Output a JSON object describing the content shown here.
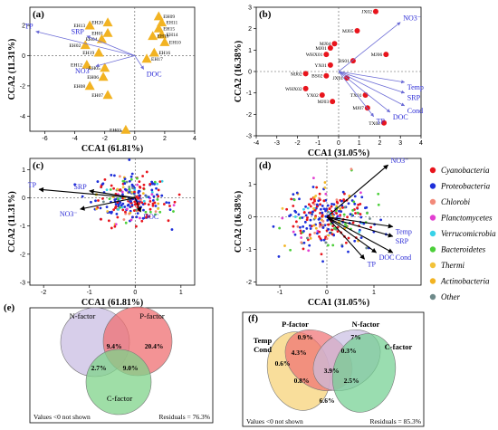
{
  "chart_data": [
    {
      "panel": "(a)",
      "type": "scatter",
      "xlabel": "CCA1 (61.81%)",
      "ylabel": "CCA2 (11.31%)",
      "xlim": [
        -7,
        4
      ],
      "ylim": [
        -5,
        3.2
      ],
      "xticks": [
        -6,
        -4,
        -2,
        0,
        2,
        4
      ],
      "yticks": [
        -4,
        -2,
        0,
        2
      ],
      "marker": "triangle",
      "marker_color": "#f2b322",
      "points": [
        {
          "label": "EH09",
          "x": 1.6,
          "y": 2.6
        },
        {
          "label": "EH11",
          "x": 1.8,
          "y": 2.2
        },
        {
          "label": "EH15",
          "x": 1.6,
          "y": 1.8
        },
        {
          "label": "EH14",
          "x": 1.8,
          "y": 1.4
        },
        {
          "label": "EH18",
          "x": 1.2,
          "y": 1.3
        },
        {
          "label": "EH10",
          "x": 2.0,
          "y": 0.9
        },
        {
          "label": "EH16",
          "x": 1.3,
          "y": 0.2
        },
        {
          "label": "EH17",
          "x": 0.8,
          "y": -0.2
        },
        {
          "label": "EH20",
          "x": -1.8,
          "y": 2.2
        },
        {
          "label": "EH13",
          "x": -3.0,
          "y": 2.0
        },
        {
          "label": "EH01",
          "x": -1.8,
          "y": 1.5
        },
        {
          "label": "EH04",
          "x": -2.2,
          "y": 1.1
        },
        {
          "label": "EH02",
          "x": -3.3,
          "y": 0.7
        },
        {
          "label": "EH19",
          "x": -2.4,
          "y": 0.2
        },
        {
          "label": "EH12",
          "x": -3.2,
          "y": -0.6
        },
        {
          "label": "EH05",
          "x": -2.0,
          "y": -0.8
        },
        {
          "label": "EH06",
          "x": -2.1,
          "y": -1.4
        },
        {
          "label": "EH08",
          "x": -3.0,
          "y": -2.0
        },
        {
          "label": "EH07",
          "x": -1.8,
          "y": -2.6
        },
        {
          "label": "EH03",
          "x": -0.6,
          "y": -4.9
        }
      ],
      "vectors": [
        {
          "label": "TP",
          "x": -6.6,
          "y": 1.6
        },
        {
          "label": "SRP",
          "x": -3.2,
          "y": 1.3
        },
        {
          "label": "NO3⁻",
          "x": -2.6,
          "y": -0.7
        },
        {
          "label": "DOC",
          "x": 0.6,
          "y": -0.9
        }
      ]
    },
    {
      "panel": "(b)",
      "type": "scatter",
      "xlabel": "CCA1 (31.05%)",
      "ylabel": "CCA2 (16.38%)",
      "xlim": [
        -4,
        4
      ],
      "ylim": [
        -3,
        3
      ],
      "xticks": [
        -4,
        -3,
        -2,
        -1,
        0,
        1,
        2,
        3,
        4
      ],
      "yticks": [
        -3,
        -2,
        -1,
        0,
        1,
        2,
        3
      ],
      "marker": "circle",
      "marker_color": "#e8141c",
      "points": [
        {
          "label": "JX02",
          "x": 1.8,
          "y": 2.8
        },
        {
          "label": "MJ05",
          "x": 0.9,
          "y": 1.9
        },
        {
          "label": "MJ04",
          "x": -0.2,
          "y": 1.3
        },
        {
          "label": "MJ01",
          "x": -0.4,
          "y": 1.1
        },
        {
          "label": "WHX01",
          "x": -0.6,
          "y": 0.8
        },
        {
          "label": "MJ06",
          "x": 2.3,
          "y": 0.8
        },
        {
          "label": "BS01",
          "x": 0.7,
          "y": 0.5
        },
        {
          "label": "YX01",
          "x": -0.4,
          "y": 0.3
        },
        {
          "label": "MJ02",
          "x": -1.6,
          "y": -0.1
        },
        {
          "label": "BS02",
          "x": -0.6,
          "y": -0.2
        },
        {
          "label": "JX01",
          "x": 0.4,
          "y": -0.3
        },
        {
          "label": "WHX02",
          "x": -1.6,
          "y": -0.8
        },
        {
          "label": "YX02",
          "x": -0.8,
          "y": -1.1
        },
        {
          "label": "TX01",
          "x": 1.3,
          "y": -1.1
        },
        {
          "label": "MJ03",
          "x": -0.3,
          "y": -1.4
        },
        {
          "label": "MJ07",
          "x": 1.4,
          "y": -1.7
        },
        {
          "label": "TX02",
          "x": 2.2,
          "y": -2.4
        }
      ],
      "vectors": [
        {
          "label": "NO3⁻",
          "x": 3.0,
          "y": 2.3
        },
        {
          "label": "Temp",
          "x": 3.2,
          "y": -0.5
        },
        {
          "label": "SRP",
          "x": 3.2,
          "y": -1.0
        },
        {
          "label": "Cond",
          "x": 3.2,
          "y": -1.6
        },
        {
          "label": "DOC",
          "x": 2.5,
          "y": -1.9
        },
        {
          "label": "TP",
          "x": 1.7,
          "y": -2.1
        }
      ]
    },
    {
      "panel": "(c)",
      "type": "scatter",
      "xlabel": "CCA1 (61.81%)",
      "ylabel": "CCA2 (11.31%)",
      "xlim": [
        -2.3,
        1.3
      ],
      "ylim": [
        -3.1,
        1.4
      ],
      "xticks": [
        -2,
        -1,
        0,
        1
      ],
      "yticks": [
        -3,
        -2,
        -1,
        0,
        1
      ],
      "point_cloud": "OTU scores colored by phylum",
      "vectors": [
        {
          "label": "TP",
          "x": -2.1,
          "y": 0.3
        },
        {
          "label": "SRP",
          "x": -1.0,
          "y": 0.25
        },
        {
          "label": "NO3⁻",
          "x": -1.2,
          "y": -0.4
        },
        {
          "label": "DOC",
          "x": 0.12,
          "y": -0.5
        }
      ]
    },
    {
      "panel": "(d)",
      "type": "scatter",
      "xlabel": "CCA1 (31.05%)",
      "ylabel": "CCA2 (16.38%)",
      "xlim": [
        -1.5,
        2.0
      ],
      "ylim": [
        -2.1,
        1.8
      ],
      "xticks": [
        -1,
        0,
        1
      ],
      "yticks": [
        -2,
        -1,
        0,
        1
      ],
      "point_cloud": "OTU scores colored by phylum",
      "vectors": [
        {
          "label": "NO3⁻",
          "x": 1.3,
          "y": 1.6
        },
        {
          "label": "Temp",
          "x": 1.4,
          "y": -0.3
        },
        {
          "label": "SRP",
          "x": 1.4,
          "y": -0.6
        },
        {
          "label": "Cond",
          "x": 1.4,
          "y": -1.1
        },
        {
          "label": "DOC",
          "x": 1.05,
          "y": -1.1
        },
        {
          "label": "TP",
          "x": 0.8,
          "y": -1.3
        }
      ]
    }
  ],
  "legend": [
    {
      "name": "Cyanobacteria",
      "color": "#e8141c"
    },
    {
      "name": "Proteobacteria",
      "color": "#1e2fd9"
    },
    {
      "name": "Chlorobi",
      "color": "#f28a7a"
    },
    {
      "name": "Planctomycetes",
      "color": "#e23fd1"
    },
    {
      "name": "Verrucomicrobia",
      "color": "#38d2e8"
    },
    {
      "name": "Bacteroidetes",
      "color": "#4ccf3a"
    },
    {
      "name": "Thermi",
      "color": "#f2c23a"
    },
    {
      "name": "Actinobacteria",
      "color": "#f2b322"
    },
    {
      "name": "Other",
      "color": "#6e8a8a"
    }
  ],
  "venn": [
    {
      "panel": "(e)",
      "sets": [
        "N-factor",
        "P-factor",
        "C-factor"
      ],
      "colors": [
        "#c9bee3",
        "#ef6f72",
        "#7fd389"
      ],
      "values": [
        {
          "sets": [
            "N-factor",
            "P-factor"
          ],
          "value": "9.4%"
        },
        {
          "sets": [
            "P-factor"
          ],
          "value": "20.4%"
        },
        {
          "sets": [
            "N-factor",
            "C-factor"
          ],
          "value": "2.7%"
        },
        {
          "sets": [
            "P-factor",
            "C-factor"
          ],
          "value": "9.0%"
        }
      ],
      "footnote_left": "Values <0 not shown",
      "footnote_right": "Residuals = 76.3%"
    },
    {
      "panel": "(f)",
      "sets": [
        "Temp Cond",
        "P-factor",
        "N-factor",
        "C-factor"
      ],
      "set_label_lines": [
        [
          "Temp",
          "Cond"
        ],
        [
          "P-factor"
        ],
        [
          "N-factor"
        ],
        [
          "C-factor"
        ]
      ],
      "colors": [
        "#f7d37a",
        "#ef6f72",
        "#c9bee3",
        "#6fcf8e"
      ],
      "values": [
        {
          "value": "0.9%"
        },
        {
          "value": "7%"
        },
        {
          "value": "0.6%"
        },
        {
          "value": "4.3%"
        },
        {
          "value": "0.3%"
        },
        {
          "value": "3.9%"
        },
        {
          "value": "0.8%"
        },
        {
          "value": "2.5%"
        },
        {
          "value": "6.6%"
        }
      ],
      "footnote_left": "Values <0 not shown",
      "footnote_right": "Residuals = 85.3%"
    }
  ]
}
